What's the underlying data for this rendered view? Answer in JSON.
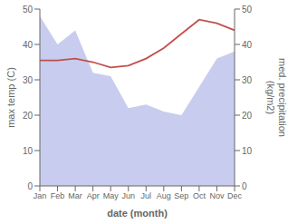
{
  "chart_data": {
    "type": "combo",
    "categories": [
      "Jan",
      "Feb",
      "Mar",
      "Apr",
      "May",
      "Jun",
      "Jul",
      "Aug",
      "Sep",
      "Oct",
      "Nov",
      "Dec"
    ],
    "series": [
      {
        "type": "area",
        "color": "#b0b8e8",
        "values": [
          48,
          40,
          44,
          32,
          31,
          22,
          23,
          21,
          20,
          28,
          36,
          38
        ]
      },
      {
        "type": "line",
        "color": "#c0504d",
        "axis": "y2",
        "values": [
          35.5,
          35.5,
          36,
          35,
          33.5,
          34,
          36,
          39,
          43,
          47,
          46,
          44
        ]
      }
    ],
    "xlabel": "date (month)",
    "ylabel": "max temp (C)",
    "y2label": "med. precipitation\n(kg/m2)",
    "ylim": [
      0,
      50
    ],
    "yticks": [
      0,
      10,
      20,
      30,
      40,
      50
    ],
    "y2lim": [
      0,
      50
    ],
    "y2ticks": [
      0,
      10,
      20,
      30,
      40,
      50
    ],
    "grid": false
  }
}
